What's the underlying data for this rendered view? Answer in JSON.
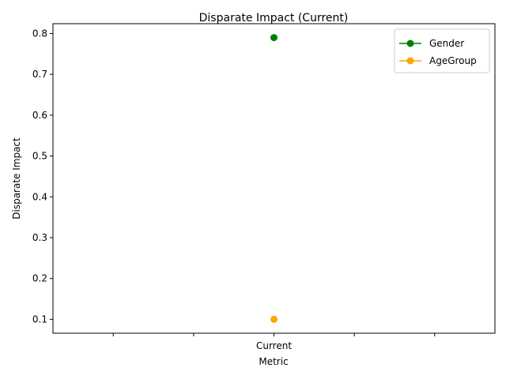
{
  "chart_data": {
    "type": "line",
    "title": "Disparate Impact (Current)",
    "xlabel": "Metric",
    "ylabel": "Disparate Impact",
    "categories": [
      "Current"
    ],
    "ylim": [
      0.066,
      0.824
    ],
    "yticks": [
      0.1,
      0.2,
      0.3,
      0.4,
      0.5,
      0.6,
      0.7,
      0.8
    ],
    "ytick_labels": [
      "0.1",
      "0.2",
      "0.3",
      "0.4",
      "0.5",
      "0.6",
      "0.7",
      "0.8"
    ],
    "grid": false,
    "legend": "top-right",
    "series": [
      {
        "name": "Gender",
        "values": [
          0.79
        ],
        "color": "#008000"
      },
      {
        "name": "AgeGroup",
        "values": [
          0.1
        ],
        "color": "#ffa500"
      }
    ]
  }
}
